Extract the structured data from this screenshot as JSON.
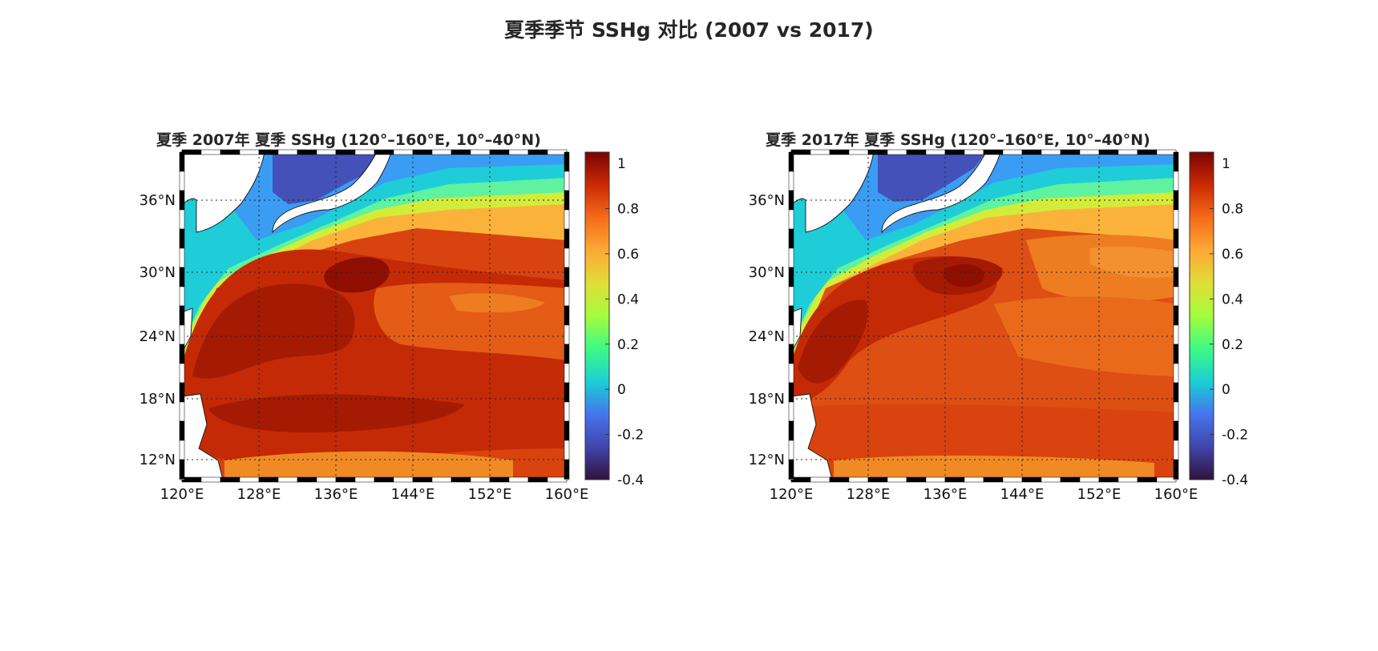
{
  "figure": {
    "title": "夏季季节 SSHg 对比 (2007 vs 2017)"
  },
  "chart_data": [
    {
      "type": "heatmap",
      "title": "夏季 2007年 夏季 SSHg (120°–160°E, 10°–40°N)",
      "x_tick_labels": [
        "120°E",
        "128°E",
        "136°E",
        "144°E",
        "152°E",
        "160°E"
      ],
      "y_tick_labels": [
        "12°N",
        "18°N",
        "24°N",
        "30°N",
        "36°N"
      ],
      "colorbar": {
        "ticks": [
          "1",
          "0.8",
          "0.6",
          "0.4",
          "0.2",
          "0",
          "-0.2",
          "-0.4"
        ],
        "range": [
          -0.4,
          1.05
        ]
      },
      "colormap": "turbo",
      "grid": true
    },
    {
      "type": "heatmap",
      "title": "夏季 2017年 夏季 SSHg (120°–160°E, 10°–40°N)",
      "x_tick_labels": [
        "120°E",
        "128°E",
        "136°E",
        "144°E",
        "152°E",
        "160°E"
      ],
      "y_tick_labels": [
        "12°N",
        "18°N",
        "24°N",
        "30°N",
        "36°N"
      ],
      "colorbar": {
        "ticks": [
          "1",
          "0.8",
          "0.6",
          "0.4",
          "0.2",
          "0",
          "-0.2",
          "-0.4"
        ],
        "range": [
          -0.4,
          1.05
        ]
      },
      "colormap": "turbo",
      "grid": true
    }
  ]
}
